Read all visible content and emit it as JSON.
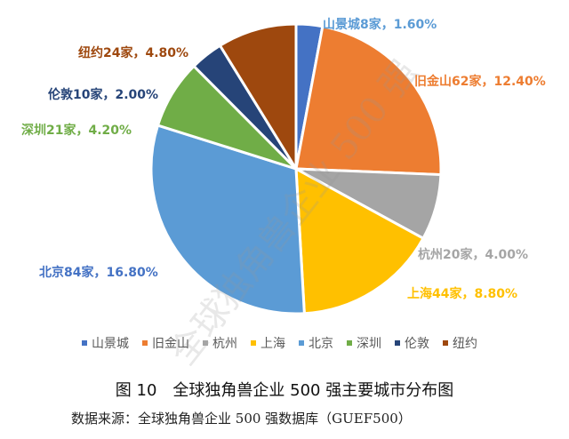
{
  "chart_data": {
    "type": "pie",
    "title": "图 10　全球独角兽企业 500 强主要城市分布图",
    "source": "数据来源：全球独角兽企业 500 强数据库（GUEF500）",
    "watermark": "全球独角兽企业 500 强",
    "legend_position": "bottom",
    "slices": [
      {
        "name": "山景城",
        "count": 8,
        "label": "山景城8家，1.60%",
        "color": "#4472C4"
      },
      {
        "name": "旧金山",
        "count": 62,
        "label": "旧金山62家，12.40%",
        "color": "#ED7D31"
      },
      {
        "name": "杭州",
        "count": 20,
        "label": "杭州20家，4.00%",
        "color": "#A5A5A5"
      },
      {
        "name": "上海",
        "count": 44,
        "label": "上海44家，8.80%",
        "color": "#FFC000"
      },
      {
        "name": "北京",
        "count": 84,
        "label": "北京84家，16.80%",
        "color": "#5B9BD5"
      },
      {
        "name": "深圳",
        "count": 21,
        "label": "深圳21家，4.20%",
        "color": "#70AD47"
      },
      {
        "name": "伦敦",
        "count": 10,
        "label": "伦敦10家，2.00%",
        "color": "#264478"
      },
      {
        "name": "纽约",
        "count": 24,
        "label": "纽约24家，4.80%",
        "color": "#9E480E"
      }
    ]
  }
}
